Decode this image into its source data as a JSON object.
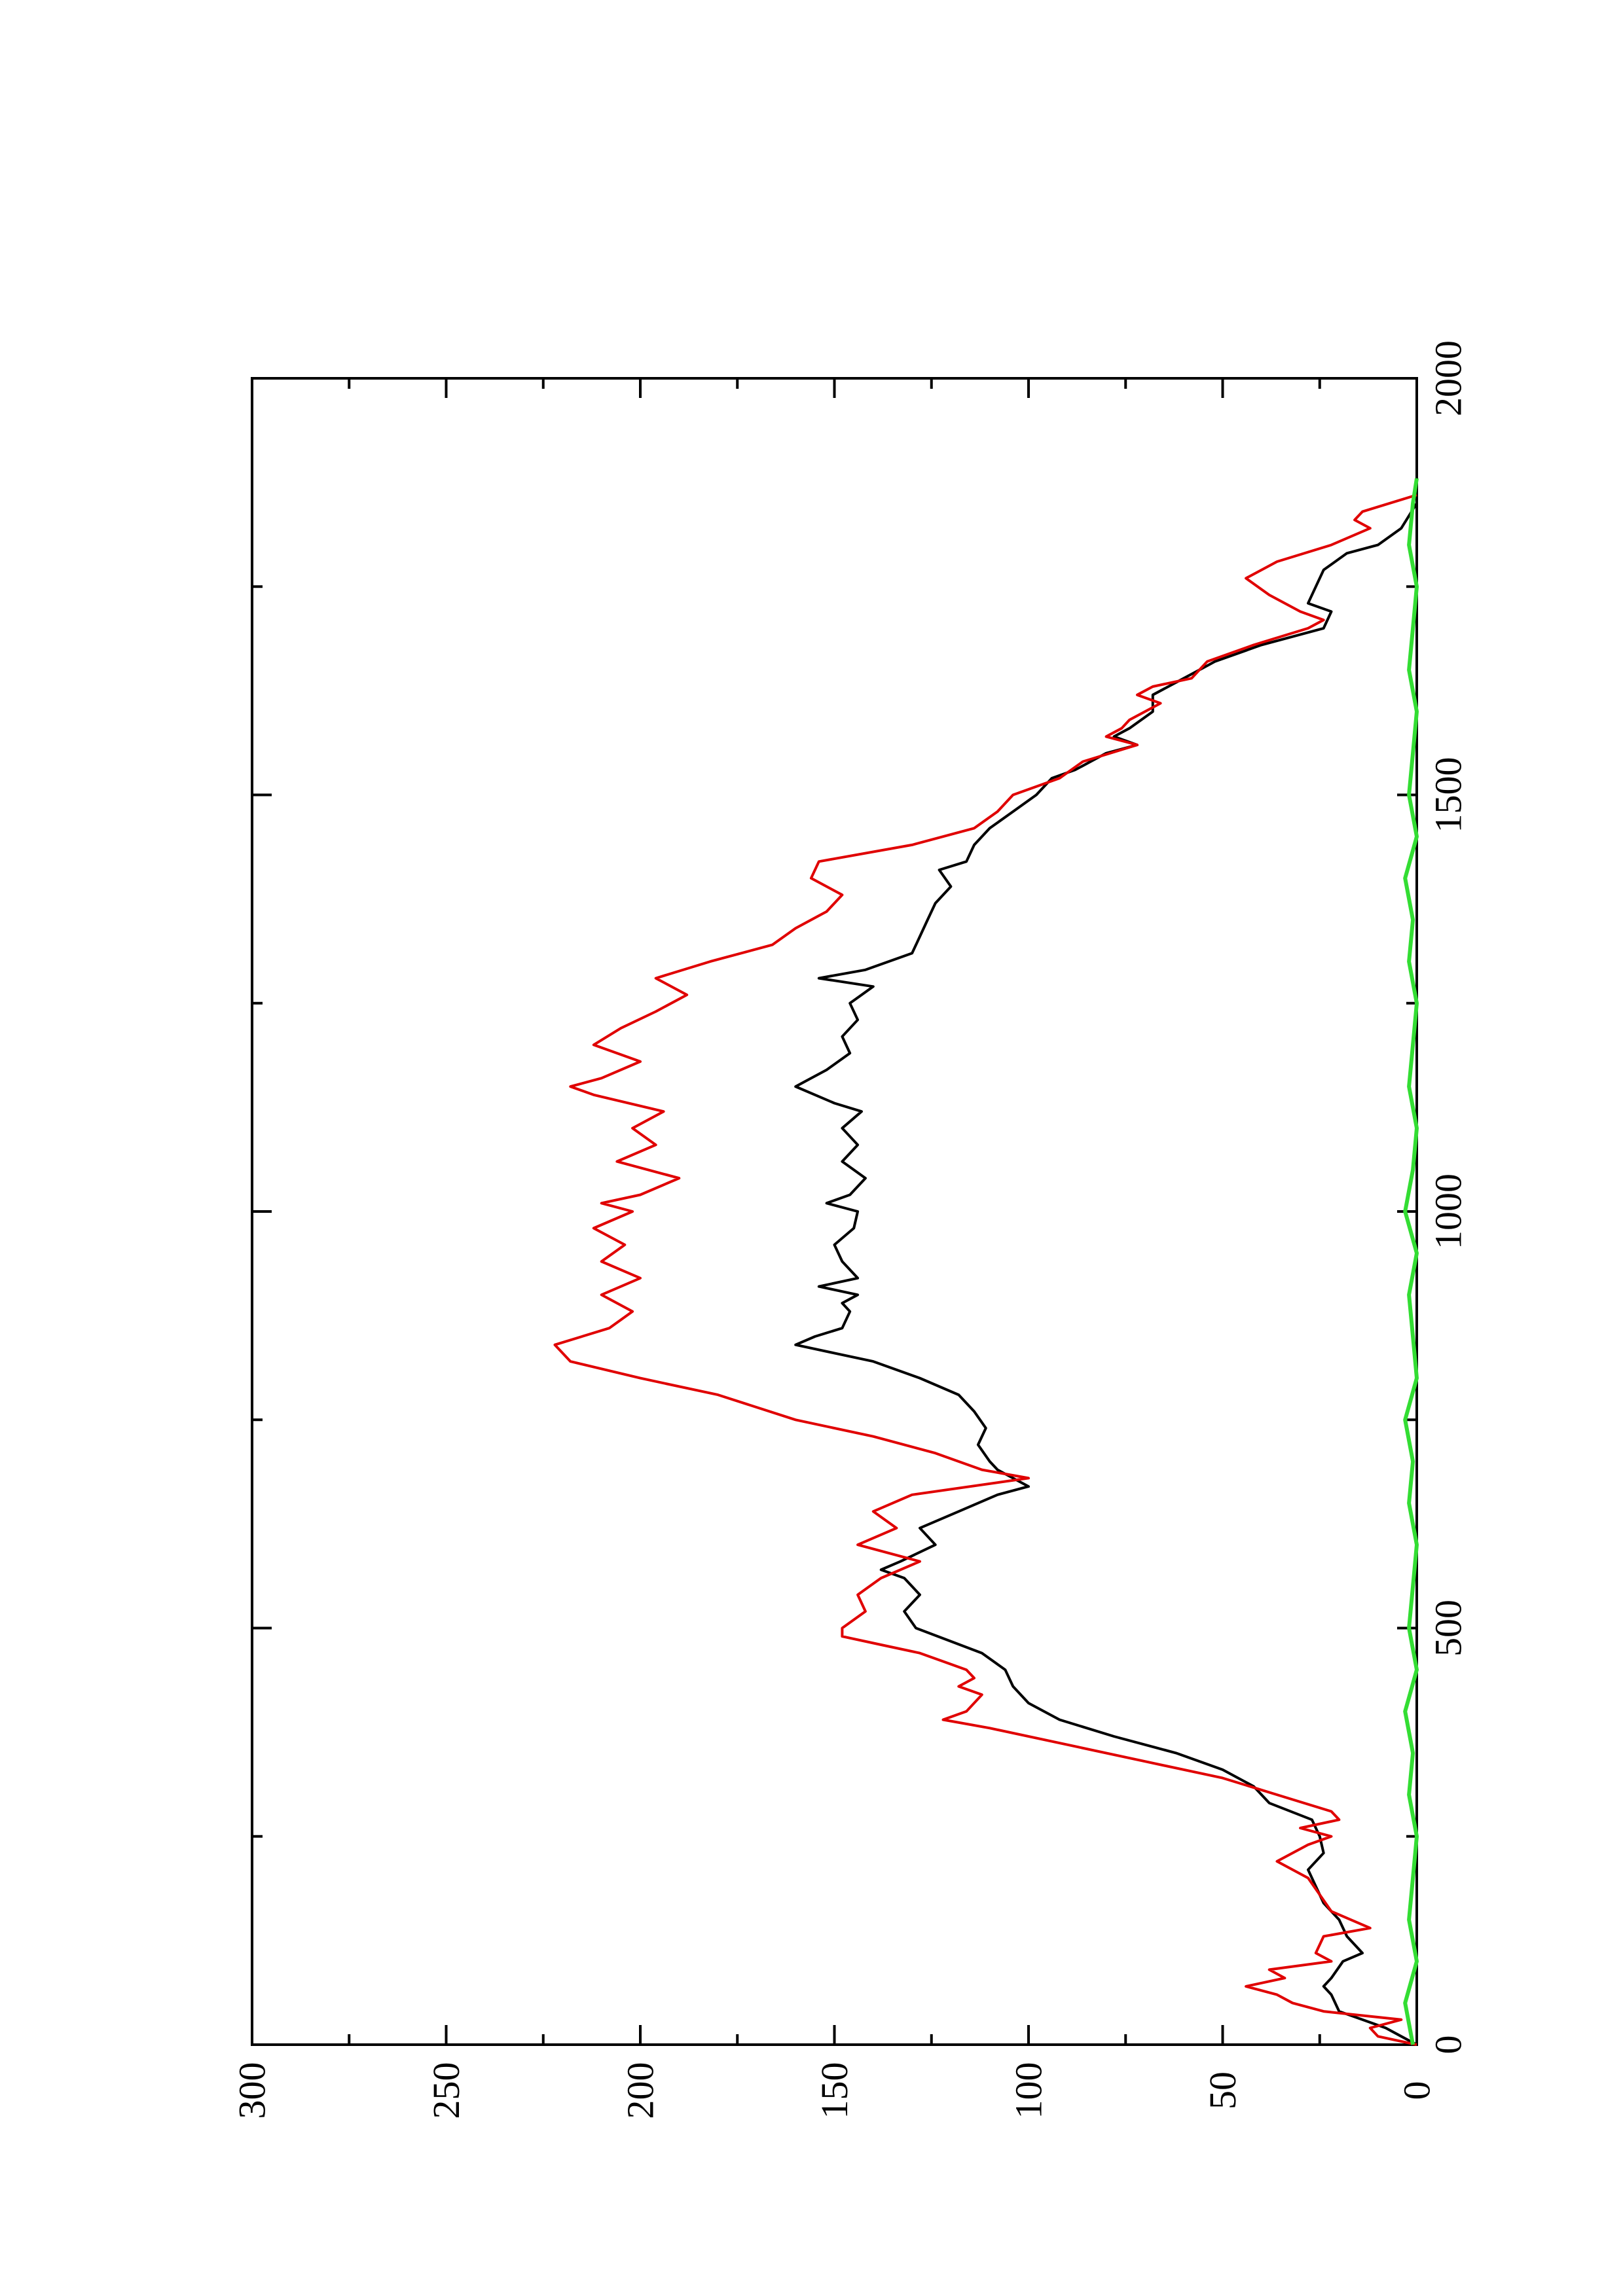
{
  "chart_data": {
    "type": "line",
    "title": "",
    "xlabel": "",
    "ylabel": "",
    "orientation": "rotated-90-ccw",
    "xlim": [
      0,
      2000
    ],
    "ylim": [
      0,
      300
    ],
    "x_ticks": [
      0,
      500,
      1000,
      1500,
      2000
    ],
    "y_ticks": [
      0,
      50,
      100,
      150,
      200,
      250,
      300
    ],
    "grid": false,
    "legend": "none",
    "series": [
      {
        "color": "#000000",
        "points": [
          [
            0,
            0
          ],
          [
            10,
            4
          ],
          [
            20,
            8
          ],
          [
            30,
            14
          ],
          [
            40,
            20
          ],
          [
            60,
            22
          ],
          [
            70,
            24
          ],
          [
            80,
            22
          ],
          [
            100,
            19
          ],
          [
            110,
            14
          ],
          [
            130,
            18
          ],
          [
            150,
            20
          ],
          [
            170,
            24
          ],
          [
            190,
            26
          ],
          [
            210,
            28
          ],
          [
            230,
            24
          ],
          [
            250,
            25
          ],
          [
            270,
            27
          ],
          [
            290,
            38
          ],
          [
            310,
            42
          ],
          [
            330,
            50
          ],
          [
            350,
            62
          ],
          [
            370,
            78
          ],
          [
            390,
            92
          ],
          [
            410,
            100
          ],
          [
            430,
            104
          ],
          [
            450,
            106
          ],
          [
            470,
            112
          ],
          [
            500,
            129
          ],
          [
            520,
            132
          ],
          [
            540,
            128
          ],
          [
            560,
            132
          ],
          [
            570,
            138
          ],
          [
            580,
            133
          ],
          [
            600,
            124
          ],
          [
            620,
            128
          ],
          [
            640,
            118
          ],
          [
            660,
            108
          ],
          [
            670,
            100
          ],
          [
            680,
            104
          ],
          [
            690,
            108
          ],
          [
            700,
            110
          ],
          [
            720,
            113
          ],
          [
            740,
            111
          ],
          [
            760,
            114
          ],
          [
            780,
            118
          ],
          [
            800,
            128
          ],
          [
            820,
            140
          ],
          [
            830,
            150
          ],
          [
            840,
            160
          ],
          [
            850,
            155
          ],
          [
            860,
            148
          ],
          [
            880,
            146
          ],
          [
            890,
            148
          ],
          [
            900,
            144
          ],
          [
            910,
            154
          ],
          [
            920,
            144
          ],
          [
            940,
            148
          ],
          [
            960,
            150
          ],
          [
            980,
            145
          ],
          [
            1000,
            144
          ],
          [
            1010,
            152
          ],
          [
            1020,
            146
          ],
          [
            1040,
            142
          ],
          [
            1060,
            148
          ],
          [
            1080,
            144
          ],
          [
            1100,
            148
          ],
          [
            1120,
            143
          ],
          [
            1130,
            150
          ],
          [
            1150,
            160
          ],
          [
            1170,
            152
          ],
          [
            1190,
            146
          ],
          [
            1210,
            148
          ],
          [
            1230,
            144
          ],
          [
            1250,
            146
          ],
          [
            1270,
            140
          ],
          [
            1280,
            154
          ],
          [
            1290,
            142
          ],
          [
            1310,
            130
          ],
          [
            1330,
            128
          ],
          [
            1350,
            126
          ],
          [
            1370,
            124
          ],
          [
            1390,
            120
          ],
          [
            1410,
            123
          ],
          [
            1420,
            116
          ],
          [
            1440,
            114
          ],
          [
            1460,
            110
          ],
          [
            1480,
            104
          ],
          [
            1500,
            98
          ],
          [
            1520,
            94
          ],
          [
            1530,
            88
          ],
          [
            1550,
            80
          ],
          [
            1560,
            72
          ],
          [
            1570,
            78
          ],
          [
            1580,
            74
          ],
          [
            1600,
            68
          ],
          [
            1620,
            68
          ],
          [
            1640,
            60
          ],
          [
            1660,
            52
          ],
          [
            1680,
            40
          ],
          [
            1700,
            24
          ],
          [
            1720,
            22
          ],
          [
            1730,
            28
          ],
          [
            1750,
            26
          ],
          [
            1770,
            24
          ],
          [
            1790,
            18
          ],
          [
            1800,
            10
          ],
          [
            1820,
            4
          ],
          [
            1850,
            0
          ]
        ]
      },
      {
        "color": "#e00000",
        "points": [
          [
            0,
            0
          ],
          [
            10,
            10
          ],
          [
            20,
            12
          ],
          [
            30,
            4
          ],
          [
            40,
            24
          ],
          [
            50,
            32
          ],
          [
            60,
            36
          ],
          [
            70,
            44
          ],
          [
            80,
            34
          ],
          [
            90,
            38
          ],
          [
            100,
            22
          ],
          [
            110,
            26
          ],
          [
            130,
            24
          ],
          [
            140,
            12
          ],
          [
            160,
            22
          ],
          [
            180,
            25
          ],
          [
            200,
            28
          ],
          [
            220,
            36
          ],
          [
            240,
            28
          ],
          [
            250,
            22
          ],
          [
            260,
            30
          ],
          [
            270,
            20
          ],
          [
            280,
            22
          ],
          [
            300,
            36
          ],
          [
            320,
            50
          ],
          [
            340,
            70
          ],
          [
            360,
            90
          ],
          [
            380,
            110
          ],
          [
            390,
            122
          ],
          [
            400,
            116
          ],
          [
            420,
            112
          ],
          [
            430,
            118
          ],
          [
            440,
            114
          ],
          [
            450,
            116
          ],
          [
            470,
            128
          ],
          [
            480,
            138
          ],
          [
            490,
            148
          ],
          [
            500,
            148
          ],
          [
            520,
            142
          ],
          [
            540,
            144
          ],
          [
            560,
            138
          ],
          [
            580,
            128
          ],
          [
            600,
            144
          ],
          [
            620,
            134
          ],
          [
            640,
            140
          ],
          [
            660,
            130
          ],
          [
            680,
            100
          ],
          [
            690,
            112
          ],
          [
            710,
            124
          ],
          [
            730,
            140
          ],
          [
            750,
            160
          ],
          [
            780,
            180
          ],
          [
            800,
            200
          ],
          [
            820,
            218
          ],
          [
            840,
            222
          ],
          [
            860,
            208
          ],
          [
            880,
            202
          ],
          [
            900,
            210
          ],
          [
            920,
            200
          ],
          [
            940,
            210
          ],
          [
            960,
            204
          ],
          [
            980,
            212
          ],
          [
            1000,
            202
          ],
          [
            1010,
            210
          ],
          [
            1020,
            200
          ],
          [
            1040,
            190
          ],
          [
            1060,
            206
          ],
          [
            1080,
            196
          ],
          [
            1100,
            202
          ],
          [
            1120,
            194
          ],
          [
            1140,
            212
          ],
          [
            1150,
            218
          ],
          [
            1160,
            210
          ],
          [
            1180,
            200
          ],
          [
            1200,
            212
          ],
          [
            1220,
            205
          ],
          [
            1240,
            196
          ],
          [
            1260,
            188
          ],
          [
            1280,
            196
          ],
          [
            1300,
            182
          ],
          [
            1320,
            166
          ],
          [
            1340,
            160
          ],
          [
            1360,
            152
          ],
          [
            1380,
            148
          ],
          [
            1400,
            156
          ],
          [
            1420,
            154
          ],
          [
            1440,
            130
          ],
          [
            1460,
            114
          ],
          [
            1480,
            108
          ],
          [
            1500,
            104
          ],
          [
            1520,
            92
          ],
          [
            1540,
            86
          ],
          [
            1560,
            72
          ],
          [
            1570,
            80
          ],
          [
            1580,
            76
          ],
          [
            1590,
            74
          ],
          [
            1610,
            66
          ],
          [
            1620,
            72
          ],
          [
            1630,
            68
          ],
          [
            1640,
            58
          ],
          [
            1660,
            54
          ],
          [
            1680,
            42
          ],
          [
            1700,
            28
          ],
          [
            1710,
            24
          ],
          [
            1720,
            30
          ],
          [
            1740,
            38
          ],
          [
            1760,
            44
          ],
          [
            1780,
            36
          ],
          [
            1800,
            22
          ],
          [
            1820,
            12
          ],
          [
            1830,
            16
          ],
          [
            1840,
            14
          ],
          [
            1860,
            0
          ]
        ]
      },
      {
        "color": "#33dd33",
        "points": [
          [
            0,
            1
          ],
          [
            50,
            3
          ],
          [
            100,
            0
          ],
          [
            150,
            2
          ],
          [
            200,
            1
          ],
          [
            250,
            0
          ],
          [
            300,
            2
          ],
          [
            350,
            1
          ],
          [
            400,
            3
          ],
          [
            450,
            0
          ],
          [
            500,
            2
          ],
          [
            550,
            1
          ],
          [
            600,
            0
          ],
          [
            650,
            2
          ],
          [
            700,
            1
          ],
          [
            750,
            3
          ],
          [
            800,
            0
          ],
          [
            850,
            1
          ],
          [
            900,
            2
          ],
          [
            950,
            0
          ],
          [
            1000,
            3
          ],
          [
            1050,
            1
          ],
          [
            1100,
            0
          ],
          [
            1150,
            2
          ],
          [
            1200,
            1
          ],
          [
            1250,
            0
          ],
          [
            1300,
            2
          ],
          [
            1350,
            1
          ],
          [
            1400,
            3
          ],
          [
            1450,
            0
          ],
          [
            1500,
            2
          ],
          [
            1550,
            1
          ],
          [
            1600,
            0
          ],
          [
            1650,
            2
          ],
          [
            1700,
            1
          ],
          [
            1750,
            0
          ],
          [
            1800,
            2
          ],
          [
            1850,
            1
          ],
          [
            1880,
            0
          ]
        ]
      }
    ]
  }
}
